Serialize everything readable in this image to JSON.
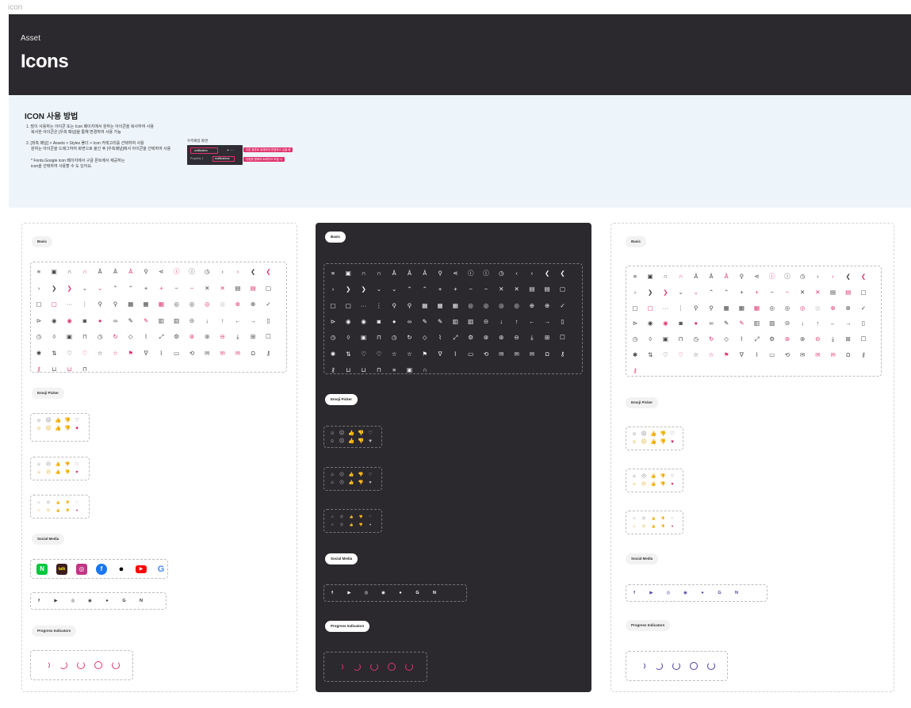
{
  "frame_label": "icon",
  "header": {
    "kicker": "Asset",
    "title": "Icons"
  },
  "guide": {
    "title": "ICON 사용 방법",
    "step1_line1": "1. 많이 사용하는 아이콘 또는 Icon 페이지에서 원하는 아이콘을 복사하여 사용",
    "step1_line2": "복사한 아이콘은 [우측 패널]을 통해 변경하여 사용 가능",
    "step2_line1": "2. [좌측 패널] > Assets > Styles 폴더 > Icon 카테고리를 선택하여 사용",
    "step2_line2": "원하는 아이콘을 드래그하여 화면으로 옮긴 후 [우측패널]에서 아이콘을 선택하여 사용",
    "note_line1": "* Fonts.Google icon 페이지에서 구글 폰트에서 제공하는",
    "note_line2": "icon을 선택하여 사용할 수 도 있어요.",
    "mock_caption": "우측패널 화면",
    "mock_field1": "notification",
    "mock_property": "Property 1",
    "mock_field2": "notifications",
    "mock_plus": "+ ···",
    "tag1": "다른 종류로 대체하여 변경하고 싶을 때",
    "tag2": "다양한 형태의 트래이크 조절 시"
  },
  "sections": {
    "basic": "Basic",
    "emoji": "Emoji Picker",
    "social": "Social Media",
    "progress": "Progress Indicators"
  },
  "social_icons": [
    "naver-blog",
    "kakaotalk",
    "instagram",
    "facebook",
    "apple",
    "youtube",
    "google"
  ],
  "social_small": [
    "facebook",
    "youtube",
    "instagram",
    "kakaotalk",
    "apple",
    "google",
    "naver"
  ],
  "colors": {
    "accent": "#e0336e",
    "dark": "#2b292d",
    "violet": "#4a3aa8",
    "guide_bg": "#eef5fa"
  }
}
